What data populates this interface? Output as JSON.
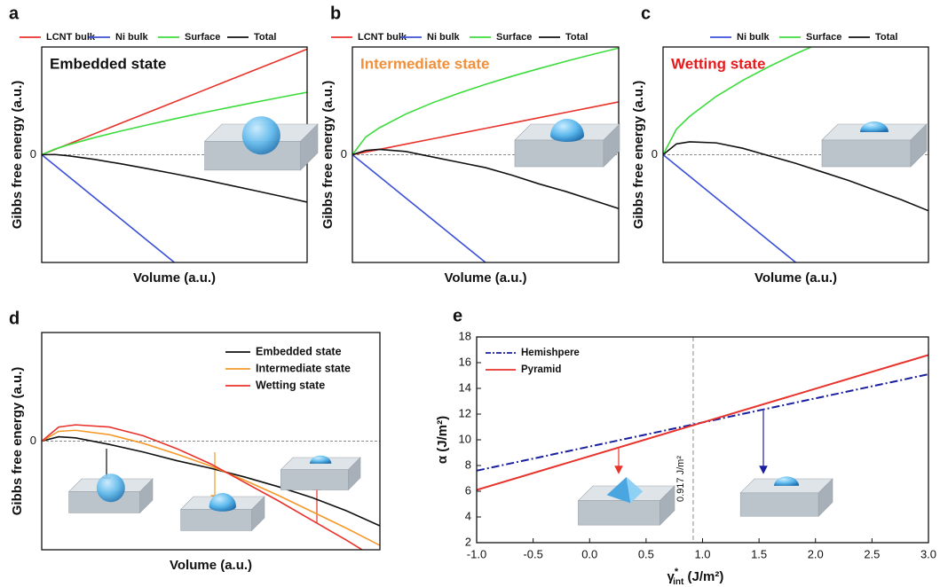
{
  "chart_data": [
    {
      "type": "line",
      "panel_label": "a",
      "annotation": "Embedded state",
      "annotation_color": "#111111",
      "x_label": "Volume (a.u.)",
      "y_label": "Gibbs free energy (a.u.)",
      "x": [
        0,
        0.05,
        0.1,
        0.2,
        0.3,
        0.4,
        0.5,
        0.6,
        0.7,
        0.8,
        0.9,
        1
      ],
      "xlim": [
        0,
        1
      ],
      "ylim": [
        -1,
        1
      ],
      "yticks": [
        0
      ],
      "grid": "dashed",
      "legend": "top",
      "series": [
        {
          "name": "LCNT bulk",
          "color": "#e8322b",
          "values": [
            0,
            0.049,
            0.098,
            0.196,
            0.294,
            0.392,
            0.49,
            0.588,
            0.686,
            0.784,
            0.882,
            0.98
          ]
        },
        {
          "name": "Ni bulk",
          "color": "#3b4fd8",
          "values": [
            0,
            -0.1,
            -0.2,
            -0.4,
            -0.6,
            -0.8,
            -1,
            null,
            null,
            null,
            null,
            null
          ]
        },
        {
          "name": "Surface",
          "color": "#3ddc3d",
          "values": [
            0,
            0.053,
            0.092,
            0.16,
            0.221,
            0.278,
            0.333,
            0.386,
            0.436,
            0.485,
            0.533,
            0.58
          ]
        },
        {
          "name": "Total",
          "color": "#111111",
          "values": [
            0,
            0.002,
            -0.01,
            -0.044,
            -0.085,
            -0.13,
            -0.177,
            -0.226,
            -0.278,
            -0.331,
            -0.385,
            -0.44
          ]
        }
      ]
    },
    {
      "type": "line",
      "panel_label": "b",
      "annotation": "Intermediate state",
      "annotation_color": "#f0903a",
      "x_label": "Volume (a.u.)",
      "y_label": "Gibbs free energy (a.u.)",
      "x": [
        0,
        0.05,
        0.1,
        0.2,
        0.3,
        0.4,
        0.5,
        0.6,
        0.7,
        0.8,
        0.9,
        1
      ],
      "xlim": [
        0,
        1
      ],
      "ylim": [
        -1,
        1
      ],
      "yticks": [
        0
      ],
      "grid": "dashed",
      "legend": "top",
      "series": [
        {
          "name": "LCNT bulk",
          "color": "#e8322b",
          "values": [
            0,
            0.025,
            0.049,
            0.098,
            0.147,
            0.196,
            0.245,
            0.294,
            0.343,
            0.392,
            0.441,
            0.49
          ]
        },
        {
          "name": "Ni bulk",
          "color": "#3b4fd8",
          "values": [
            0,
            -0.1,
            -0.2,
            -0.4,
            -0.6,
            -0.8,
            -1,
            null,
            null,
            null,
            null,
            null
          ]
        },
        {
          "name": "Surface",
          "color": "#3ddc3d",
          "values": [
            0,
            0.164,
            0.248,
            0.377,
            0.481,
            0.571,
            0.653,
            0.729,
            0.799,
            0.866,
            0.93,
            0.99
          ]
        },
        {
          "name": "Total",
          "color": "#111111",
          "values": [
            0,
            0.04,
            0.05,
            0.03,
            -0.02,
            -0.07,
            -0.12,
            -0.19,
            -0.27,
            -0.34,
            -0.42,
            -0.5
          ]
        }
      ]
    },
    {
      "type": "line",
      "panel_label": "c",
      "annotation": "Wetting state",
      "annotation_color": "#e8191a",
      "x_label": "Volume (a.u.)",
      "y_label": "Gibbs free energy (a.u.)",
      "x": [
        0,
        0.05,
        0.1,
        0.2,
        0.3,
        0.4,
        0.5,
        0.6,
        0.7,
        0.8,
        0.9,
        1
      ],
      "xlim": [
        0,
        1
      ],
      "ylim": [
        -1,
        1
      ],
      "yticks": [
        0
      ],
      "grid": "dashed",
      "legend": "top",
      "series": [
        {
          "name": "Ni bulk",
          "color": "#3b4fd8",
          "values": [
            0,
            -0.1,
            -0.2,
            -0.4,
            -0.6,
            -0.8,
            -1,
            null,
            null,
            null,
            null,
            null
          ]
        },
        {
          "name": "Surface",
          "color": "#3ddc3d",
          "values": [
            0,
            0.236,
            0.356,
            0.541,
            0.69,
            0.819,
            0.937,
            1.045,
            null,
            null,
            null,
            null
          ]
        },
        {
          "name": "Total",
          "color": "#111111",
          "values": [
            0,
            0.1,
            0.12,
            0.11,
            0.06,
            -0.01,
            -0.08,
            -0.16,
            -0.24,
            -0.33,
            -0.42,
            -0.52
          ]
        }
      ]
    },
    {
      "type": "line",
      "panel_label": "d",
      "x_label": "Volume (a.u.)",
      "y_label": "Gibbs free energy (a.u.)",
      "x": [
        0,
        0.05,
        0.1,
        0.2,
        0.3,
        0.4,
        0.5,
        0.6,
        0.7,
        0.8,
        0.9,
        1
      ],
      "xlim": [
        0,
        1
      ],
      "ylim": [
        -1,
        1
      ],
      "yticks": [
        0
      ],
      "grid": "dashed",
      "legend": "upper right",
      "series": [
        {
          "name": "Embedded state",
          "color": "#111111",
          "values": [
            0,
            0.04,
            0.03,
            -0.03,
            -0.1,
            -0.18,
            -0.25,
            -0.33,
            -0.42,
            -0.52,
            -0.64,
            -0.78
          ]
        },
        {
          "name": "Intermediate state",
          "color": "#f39a2b",
          "values": [
            0,
            0.09,
            0.1,
            0.06,
            -0.02,
            -0.12,
            -0.23,
            -0.36,
            -0.5,
            -0.65,
            -0.8,
            -0.96
          ]
        },
        {
          "name": "Wetting state",
          "color": "#e8322b",
          "values": [
            0,
            0.13,
            0.15,
            0.13,
            0.05,
            -0.07,
            -0.21,
            -0.38,
            -0.55,
            -0.73,
            -0.91,
            -1.1
          ]
        }
      ]
    },
    {
      "type": "line",
      "panel_label": "e",
      "x_label": {
        "symbol": "γ",
        "superscript": "*",
        "subscript": "int",
        "unit": " (J/m²)"
      },
      "y_label": "α (J/m²)",
      "x": [
        -1,
        3
      ],
      "xlim": [
        -1,
        3
      ],
      "ylim": [
        2,
        18
      ],
      "xticks": [
        {
          "value": -1,
          "label": "-1.0"
        },
        {
          "value": -0.5,
          "label": "-0.5"
        },
        {
          "value": 0,
          "label": "0.0"
        },
        {
          "value": 0.5,
          "label": "0.5"
        },
        {
          "value": 1,
          "label": "1.0"
        },
        {
          "value": 1.5,
          "label": "1.5"
        },
        {
          "value": 2,
          "label": "2.0"
        },
        {
          "value": 2.5,
          "label": "2.5"
        },
        {
          "value": 3,
          "label": "3.0"
        }
      ],
      "yticks": [
        2,
        4,
        6,
        8,
        10,
        12,
        14,
        16,
        18
      ],
      "grid": false,
      "legend": "upper left",
      "vline": {
        "value": 0.917,
        "label": "0.917 J/m²"
      },
      "series": [
        {
          "name": "Hemishpere",
          "color": "#1a1f9e",
          "dash": "dash-dot",
          "values": [
            7.6,
            15.1
          ]
        },
        {
          "name": "Pyramid",
          "color": "#e8322b",
          "values": [
            6.1,
            16.6
          ]
        }
      ]
    }
  ]
}
